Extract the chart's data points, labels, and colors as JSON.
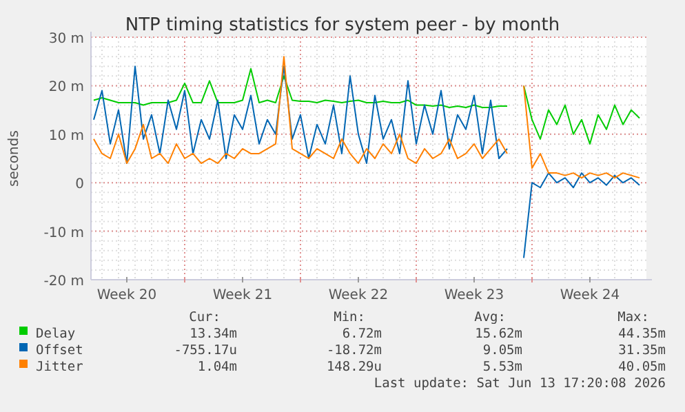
{
  "chart_data": {
    "type": "line",
    "title": "NTP timing statistics for system peer - by month",
    "ylabel": "seconds",
    "x": [
      "2026-05-12T12:00",
      "2026-05-13T00:00",
      "2026-05-13T12:00",
      "2026-05-14T00:00",
      "2026-05-14T12:00",
      "2026-05-15T00:00",
      "2026-05-15T12:00",
      "2026-05-16T00:00",
      "2026-05-16T12:00",
      "2026-05-17T00:00",
      "2026-05-17T12:00",
      "2026-05-18T00:00",
      "2026-05-18T12:00",
      "2026-05-19T00:00",
      "2026-05-19T12:00",
      "2026-05-20T00:00",
      "2026-05-20T12:00",
      "2026-05-21T00:00",
      "2026-05-21T12:00",
      "2026-05-22T00:00",
      "2026-05-22T12:00",
      "2026-05-23T00:00",
      "2026-05-23T12:00",
      "2026-05-24T00:00",
      "2026-05-24T12:00",
      "2026-05-25T00:00",
      "2026-05-25T12:00",
      "2026-05-26T00:00",
      "2026-05-26T12:00",
      "2026-05-27T00:00",
      "2026-05-27T12:00",
      "2026-05-28T00:00",
      "2026-05-28T12:00",
      "2026-05-29T00:00",
      "2026-05-29T12:00",
      "2026-05-30T00:00",
      "2026-05-30T12:00",
      "2026-05-31T00:00",
      "2026-05-31T12:00",
      "2026-06-01T00:00",
      "2026-06-01T12:00",
      "2026-06-02T00:00",
      "2026-06-02T12:00",
      "2026-06-03T00:00",
      "2026-06-03T12:00",
      "2026-06-04T00:00",
      "2026-06-04T12:00",
      "2026-06-05T00:00",
      "2026-06-05T12:00",
      "2026-06-06T00:00",
      "2026-06-06T12:00",
      "2026-06-07T00:00",
      "2026-06-07T12:00",
      "2026-06-08T00:00",
      "2026-06-08T12:00",
      "2026-06-09T00:00",
      "2026-06-09T12:00",
      "2026-06-10T00:00",
      "2026-06-10T12:00",
      "2026-06-11T00:00",
      "2026-06-11T12:00",
      "2026-06-12T00:00",
      "2026-06-12T12:00",
      "2026-06-13T00:00",
      "2026-06-13T12:00",
      "2026-06-14T00:00",
      "2026-06-14T12:00"
    ],
    "series": [
      {
        "name": "Delay",
        "color": "#00cc00",
        "values": [
          17,
          17.5,
          17,
          16.5,
          16.5,
          16.5,
          16,
          16.5,
          16.5,
          16.5,
          17,
          20.5,
          16.5,
          16.5,
          21,
          16.5,
          16.5,
          16.5,
          17,
          23.5,
          16.5,
          17,
          16.5,
          22,
          17,
          16.8,
          16.8,
          16.5,
          17,
          16.8,
          16.5,
          16.8,
          17,
          16.5,
          16.5,
          16.8,
          16.5,
          16.5,
          17,
          16,
          16,
          15.8,
          16,
          15.5,
          15.8,
          15.5,
          16,
          15.5,
          15.5,
          15.8,
          15.8,
          null,
          20,
          13,
          9,
          15,
          12,
          16,
          10,
          13,
          8,
          14,
          11,
          16,
          12,
          15,
          13.3
        ]
      },
      {
        "name": "Offset",
        "color": "#0066b3",
        "values": [
          13,
          19,
          8,
          15,
          4,
          24,
          9,
          14,
          6,
          17,
          11,
          19,
          6,
          13,
          9,
          17,
          5,
          14,
          11,
          18,
          8,
          13,
          10,
          24,
          9,
          14,
          5,
          12,
          8,
          16,
          6,
          22,
          10,
          4,
          18,
          9,
          13,
          6,
          21,
          8,
          16,
          10,
          19,
          7,
          14,
          11,
          18,
          6,
          17,
          5,
          7,
          null,
          -15.5,
          0,
          -1,
          2,
          0,
          1,
          -1,
          2,
          0,
          1,
          -0.5,
          1.5,
          0,
          1,
          -0.5
        ]
      },
      {
        "name": "Jitter",
        "color": "#ff8000",
        "values": [
          9,
          6,
          5,
          10,
          4,
          7,
          12,
          5,
          6,
          4,
          8,
          5,
          6,
          4,
          5,
          4,
          6,
          5,
          7,
          6,
          6,
          7,
          8,
          26,
          7,
          6,
          5,
          7,
          6,
          5,
          9,
          6,
          4,
          7,
          5,
          8,
          6,
          10,
          5,
          4,
          7,
          5,
          6,
          9,
          5,
          6,
          8,
          5,
          7,
          9,
          6,
          null,
          20,
          3,
          6,
          2,
          2,
          1.5,
          2,
          1,
          2,
          1.5,
          2,
          1,
          2,
          1.5,
          1
        ]
      }
    ],
    "xlim": [
      "2026-05-12T08:00",
      "2026-06-14T22:00"
    ],
    "xticks": [
      {
        "value": "2026-05-14T12:00",
        "label": "Week 20"
      },
      {
        "value": "2026-05-18T00:00",
        "label": null
      },
      {
        "value": "2026-05-21T12:00",
        "label": "Week 21"
      },
      {
        "value": "2026-05-25T00:00",
        "label": null
      },
      {
        "value": "2026-05-28T12:00",
        "label": "Week 22"
      },
      {
        "value": "2026-06-01T00:00",
        "label": null
      },
      {
        "value": "2026-06-04T12:00",
        "label": "Week 23"
      },
      {
        "value": "2026-06-08T00:00",
        "label": null
      },
      {
        "value": "2026-06-11T12:00",
        "label": "Week 24"
      }
    ],
    "ylim": [
      -20,
      30
    ],
    "yticks": [
      {
        "value": -20,
        "label": "-20 m"
      },
      {
        "value": -10,
        "label": "-10 m"
      },
      0,
      {
        "value": 10,
        "label": "10 m"
      },
      {
        "value": 20,
        "label": "20 m"
      },
      {
        "value": 30,
        "label": "30 m"
      }
    ],
    "grid": true,
    "legend": "bottom",
    "line_style": "solid",
    "marker": "none",
    "annotations": [
      "Cur:",
      "Min:",
      "Avg:",
      "Max:",
      "13.34m",
      "6.72m",
      "15.62m",
      "44.35m",
      "-755.17u",
      "-18.72m",
      "9.05m",
      "31.35m",
      "1.04m",
      "148.29u",
      "5.53m",
      "40.05m",
      "Last update: Sat Jun 13 17:20:08 2026"
    ]
  }
}
